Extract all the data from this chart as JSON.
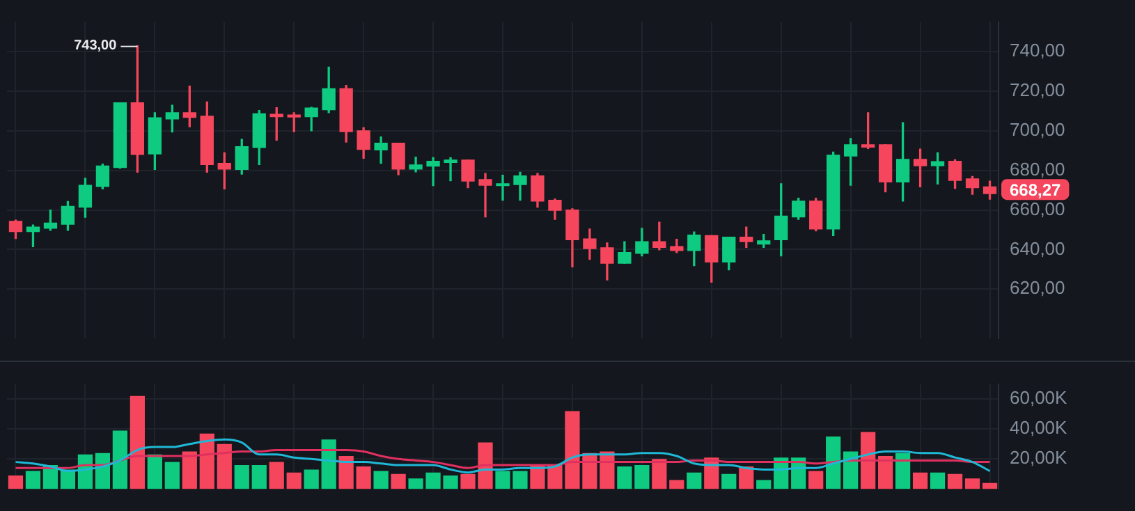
{
  "chart_data": [
    {
      "type": "candlestick",
      "categories": [
        null,
        null,
        null,
        null,
        null,
        null,
        null,
        null,
        null,
        null,
        null,
        null,
        null,
        null,
        null,
        null,
        null,
        null,
        null,
        null,
        null,
        null,
        null,
        null,
        null,
        null,
        null,
        null,
        null,
        null,
        null,
        null,
        null,
        null,
        null,
        null,
        null,
        null,
        null,
        null,
        null,
        null,
        null,
        null,
        null,
        null,
        null,
        null,
        null,
        null,
        null,
        null,
        null,
        null,
        null,
        null,
        null
      ],
      "ohlc": [
        [
          654.3,
          654.9,
          645.6,
          649.1
        ],
        [
          649.1,
          652.4,
          641.5,
          651.4
        ],
        [
          650.8,
          660.0,
          649.7,
          653.4
        ],
        [
          652.8,
          664.3,
          649.7,
          661.8
        ],
        [
          661.4,
          676.0,
          656.3,
          672.5
        ],
        [
          671.9,
          683.2,
          670.7,
          682.2
        ],
        [
          681.5,
          714.2,
          681.1,
          714.2
        ],
        [
          714.2,
          743.0,
          679.1,
          688.1
        ],
        [
          688.3,
          709.2,
          680.5,
          706.6
        ],
        [
          706.0,
          712.9,
          699.4,
          709.2
        ],
        [
          709.2,
          722.6,
          702.1,
          706.8
        ],
        [
          707.4,
          714.6,
          679.1,
          683.0
        ],
        [
          683.6,
          688.9,
          670.7,
          680.7
        ],
        [
          680.5,
          695.7,
          678.1,
          692.0
        ],
        [
          691.6,
          710.3,
          683.0,
          708.6
        ],
        [
          708.4,
          711.7,
          695.3,
          707.2
        ],
        [
          708.0,
          709.2,
          699.6,
          707.0
        ],
        [
          707.2,
          711.9,
          700.0,
          711.5
        ],
        [
          710.7,
          732.2,
          709.2,
          721.3
        ],
        [
          721.3,
          723.0,
          694.3,
          699.6
        ],
        [
          700.0,
          701.6,
          686.1,
          690.6
        ],
        [
          690.4,
          696.9,
          683.6,
          693.8
        ],
        [
          693.8,
          693.8,
          677.8,
          680.7
        ],
        [
          680.7,
          686.7,
          679.3,
          682.8
        ],
        [
          682.2,
          686.5,
          672.3,
          684.6
        ],
        [
          684.0,
          686.5,
          674.8,
          685.2
        ],
        [
          685.2,
          685.2,
          671.3,
          674.6
        ],
        [
          675.4,
          678.5,
          656.5,
          672.5
        ],
        [
          672.3,
          677.6,
          664.9,
          673.3
        ],
        [
          672.9,
          679.1,
          664.9,
          677.2
        ],
        [
          677.2,
          678.5,
          661.4,
          664.5
        ],
        [
          664.9,
          665.5,
          655.3,
          659.8
        ],
        [
          660.0,
          660.6,
          631.3,
          645.0
        ],
        [
          645.4,
          650.4,
          635.0,
          640.5
        ],
        [
          640.9,
          643.4,
          624.7,
          633.1
        ],
        [
          633.1,
          644.0,
          633.1,
          638.5
        ],
        [
          638.1,
          650.8,
          636.8,
          644.0
        ],
        [
          644.0,
          653.8,
          639.9,
          641.1
        ],
        [
          641.5,
          645.2,
          638.5,
          639.5
        ],
        [
          639.5,
          648.9,
          631.9,
          647.3
        ],
        [
          647.1,
          647.1,
          623.5,
          633.7
        ],
        [
          633.7,
          646.3,
          629.8,
          646.3
        ],
        [
          646.3,
          651.4,
          641.1,
          644.0
        ],
        [
          642.8,
          647.7,
          641.1,
          644.4
        ],
        [
          645.0,
          673.3,
          636.8,
          656.9
        ],
        [
          656.5,
          666.0,
          655.3,
          664.5
        ],
        [
          664.5,
          666.0,
          649.5,
          650.4
        ],
        [
          650.4,
          689.3,
          647.1,
          687.7
        ],
        [
          687.3,
          696.1,
          672.5,
          693.0
        ],
        [
          693.0,
          709.2,
          691.1,
          691.8
        ],
        [
          693.0,
          693.0,
          669.2,
          674.2
        ],
        [
          674.2,
          704.1,
          664.5,
          685.6
        ],
        [
          685.6,
          690.8,
          671.7,
          682.4
        ],
        [
          682.4,
          688.9,
          673.1,
          684.4
        ],
        [
          684.6,
          685.4,
          670.9,
          675.0
        ],
        [
          675.7,
          677.0,
          667.9,
          671.3
        ],
        [
          671.7,
          674.6,
          665.5,
          668.27
        ]
      ],
      "colors": [
        "#f6465d",
        "#0ecb81",
        "#0ecb81",
        "#0ecb81",
        "#0ecb81",
        "#0ecb81",
        "#0ecb81",
        "#f6465d",
        "#0ecb81",
        "#0ecb81",
        "#f6465d",
        "#f6465d",
        "#f6465d",
        "#0ecb81",
        "#0ecb81",
        "#f6465d",
        "#f6465d",
        "#0ecb81",
        "#0ecb81",
        "#f6465d",
        "#f6465d",
        "#0ecb81",
        "#f6465d",
        "#0ecb81",
        "#0ecb81",
        "#0ecb81",
        "#f6465d",
        "#f6465d",
        "#0ecb81",
        "#0ecb81",
        "#f6465d",
        "#f6465d",
        "#f6465d",
        "#f6465d",
        "#f6465d",
        "#0ecb81",
        "#0ecb81",
        "#f6465d",
        "#f6465d",
        "#0ecb81",
        "#f6465d",
        "#0ecb81",
        "#f6465d",
        "#0ecb81",
        "#0ecb81",
        "#0ecb81",
        "#f6465d",
        "#0ecb81",
        "#0ecb81",
        "#f6465d",
        "#f6465d",
        "#0ecb81",
        "#f6465d",
        "#0ecb81",
        "#f6465d",
        "#f6465d",
        "#f6465d"
      ],
      "ylim": [
        595,
        755
      ],
      "yticks": [
        {
          "value": 620,
          "label": "620,00"
        },
        {
          "value": 640,
          "label": "640,00"
        },
        {
          "value": 660,
          "label": "660,00"
        },
        {
          "value": 680,
          "label": "680,00"
        },
        {
          "value": 700,
          "label": "700,00"
        },
        {
          "value": 720,
          "label": "720,00"
        },
        {
          "value": 740,
          "label": "740,00"
        }
      ],
      "annotations": [
        "743,00",
        "668,27"
      ],
      "grid": true,
      "tick_labels": "y"
    },
    {
      "type": "bar",
      "categories": [
        null,
        null,
        null,
        null,
        null,
        null,
        null,
        null,
        null,
        null,
        null,
        null,
        null,
        null,
        null,
        null,
        null,
        null,
        null,
        null,
        null,
        null,
        null,
        null,
        null,
        null,
        null,
        null,
        null,
        null,
        null,
        null,
        null,
        null,
        null,
        null,
        null,
        null,
        null,
        null,
        null,
        null,
        null,
        null,
        null,
        null,
        null,
        null,
        null,
        null,
        null,
        null,
        null,
        null,
        null,
        null,
        null
      ],
      "series": [
        {
          "type": "bar",
          "values": [
            9,
            12,
            16,
            13,
            23,
            24,
            39,
            62,
            23,
            18,
            25,
            37,
            30,
            16,
            16,
            18,
            11,
            13,
            33,
            22,
            15,
            12,
            10,
            7,
            11,
            9,
            10,
            31,
            12,
            12,
            16,
            16,
            52,
            24,
            25,
            15,
            16,
            20,
            6,
            11,
            21,
            10,
            15,
            6,
            21,
            21,
            12,
            35,
            25,
            38,
            22,
            24,
            11,
            11,
            10,
            7,
            4
          ],
          "colors": [
            "#f6465d",
            "#0ecb81",
            "#0ecb81",
            "#0ecb81",
            "#0ecb81",
            "#0ecb81",
            "#0ecb81",
            "#f6465d",
            "#0ecb81",
            "#0ecb81",
            "#f6465d",
            "#f6465d",
            "#f6465d",
            "#0ecb81",
            "#0ecb81",
            "#f6465d",
            "#f6465d",
            "#0ecb81",
            "#0ecb81",
            "#f6465d",
            "#f6465d",
            "#0ecb81",
            "#f6465d",
            "#0ecb81",
            "#0ecb81",
            "#0ecb81",
            "#f6465d",
            "#f6465d",
            "#0ecb81",
            "#0ecb81",
            "#f6465d",
            "#f6465d",
            "#f6465d",
            "#f6465d",
            "#f6465d",
            "#0ecb81",
            "#0ecb81",
            "#f6465d",
            "#f6465d",
            "#0ecb81",
            "#f6465d",
            "#0ecb81",
            "#f6465d",
            "#0ecb81",
            "#0ecb81",
            "#0ecb81",
            "#f6465d",
            "#0ecb81",
            "#0ecb81",
            "#f6465d",
            "#f6465d",
            "#0ecb81",
            "#f6465d",
            "#0ecb81",
            "#f6465d",
            "#f6465d",
            "#f6465d"
          ]
        },
        {
          "type": "line",
          "color": "#1fb8d6",
          "values": [
            18,
            17,
            15,
            12,
            13,
            15,
            19,
            26,
            28,
            28,
            30,
            32,
            33,
            31,
            23,
            23,
            21,
            20,
            19,
            18,
            18,
            17,
            16,
            16,
            16,
            13,
            11,
            13,
            13,
            14,
            14,
            15,
            21,
            23,
            23,
            23,
            24,
            24,
            22,
            17,
            16,
            16,
            14,
            13,
            13,
            14,
            14,
            17,
            20,
            23,
            25,
            25,
            24,
            24,
            21,
            18,
            12
          ]
        },
        {
          "type": "line",
          "color": "#e0305f",
          "values": [
            14,
            14,
            14,
            14,
            16,
            16,
            19,
            22,
            22,
            22,
            22,
            23,
            24,
            25,
            25,
            26,
            26,
            26,
            26,
            26,
            25,
            22,
            20,
            19,
            18,
            16,
            14,
            16,
            16,
            16,
            16,
            16,
            18,
            18,
            18,
            18,
            18,
            18,
            18,
            19,
            19,
            18,
            18,
            18,
            18,
            18,
            17,
            18,
            19,
            19,
            19,
            19,
            19,
            19,
            19,
            18,
            18
          ]
        }
      ],
      "ylim": [
        0,
        70
      ],
      "yticks": [
        {
          "value": 20,
          "label": "20,00K"
        },
        {
          "value": 40,
          "label": "40,00K"
        },
        {
          "value": 60,
          "label": "60,00K"
        }
      ],
      "grid": true,
      "tick_labels": "y"
    }
  ]
}
